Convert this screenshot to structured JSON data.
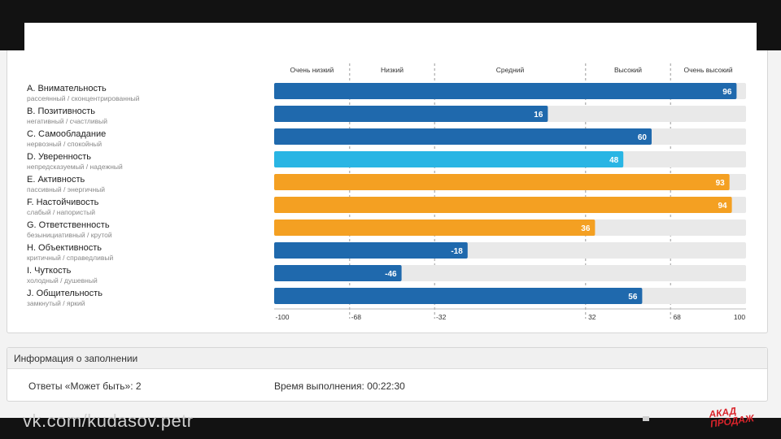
{
  "chart_data": {
    "type": "bar",
    "orientation": "horizontal",
    "title": "",
    "xlim": [
      -100,
      100
    ],
    "x_ticks": [
      "-100",
      "-68",
      "-32",
      "32",
      "68",
      "100"
    ],
    "band_labels": [
      "Очень низкий",
      "Низкий",
      "Средний",
      "Высокий",
      "Очень высокий"
    ],
    "categories": [
      {
        "name": "A. Внимательность",
        "sub": "рассеянный / сконцентрированный",
        "value": 96,
        "label": "96",
        "color": "#1f69ad"
      },
      {
        "name": "B. Позитивность",
        "sub": "негативный / счастливый",
        "value": 16,
        "label": "16",
        "color": "#1f69ad"
      },
      {
        "name": "C. Самообладание",
        "sub": "нервозный / спокойный",
        "value": 60,
        "label": "60",
        "color": "#1f69ad"
      },
      {
        "name": "D. Уверенность",
        "sub": "непредсказуемый / надежный",
        "value": 48,
        "label": "48",
        "color": "#29b5e4"
      },
      {
        "name": "E. Активность",
        "sub": "пассивный / энергичный",
        "value": 93,
        "label": "93",
        "color": "#f4a022"
      },
      {
        "name": "F. Настойчивость",
        "sub": "слабый / напористый",
        "value": 94,
        "label": "94",
        "color": "#f4a022"
      },
      {
        "name": "G. Ответственность",
        "sub": "безынициативный / крутой",
        "value": 36,
        "label": "36",
        "color": "#f4a022"
      },
      {
        "name": "H. Объективность",
        "sub": "критичный / справедливый",
        "value": -18,
        "label": "-18",
        "color": "#1f69ad"
      },
      {
        "name": "I. Чуткость",
        "sub": "холодный / душевный",
        "value": -46,
        "label": "-46",
        "color": "#1f69ad"
      },
      {
        "name": "J. Общительность",
        "sub": "замкнутый / яркий",
        "value": 56,
        "label": "56",
        "color": "#1f69ad"
      }
    ],
    "track_color": "#e9e9e9"
  },
  "info": {
    "header": "Информация о заполнении",
    "answers": "Ответы «Может быть»: 2",
    "duration": "Время выполнения: 00:22:30"
  },
  "footer": {
    "left_text": "vk.com/kudasov.petr",
    "logo_line1": "АКАД",
    "logo_line2": "ПРОДАЖ"
  }
}
